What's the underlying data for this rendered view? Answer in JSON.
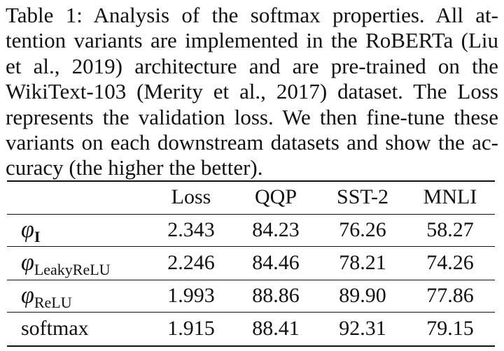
{
  "caption": {
    "lines": [
      "Table 1: Analysis of the softmax properties. All at-",
      "tention variants are implemented in the RoBERTa (Liu",
      "et al., 2019) architecture and are pre-trained on the",
      "WikiText-103 (Merity et al., 2017) dataset. The Loss",
      "represents the validation loss. We then fine-tune these",
      "variants on each downstream datasets and show the ac-",
      "curacy (the higher the better)."
    ]
  },
  "table": {
    "headers": [
      "Loss",
      "QQP",
      "SST-2",
      "MNLI"
    ],
    "rows": [
      {
        "symbol": "φ",
        "subscript": "I",
        "values": [
          "2.343",
          "84.23",
          "76.26",
          "58.27"
        ]
      },
      {
        "symbol": "φ",
        "subscript": "LeakyReLU",
        "values": [
          "2.246",
          "84.46",
          "78.21",
          "74.26"
        ]
      },
      {
        "symbol": "φ",
        "subscript": "ReLU",
        "values": [
          "1.993",
          "88.86",
          "89.90",
          "77.86"
        ]
      },
      {
        "label": "softmax",
        "values": [
          "1.915",
          "88.41",
          "92.31",
          "79.15"
        ]
      }
    ]
  }
}
